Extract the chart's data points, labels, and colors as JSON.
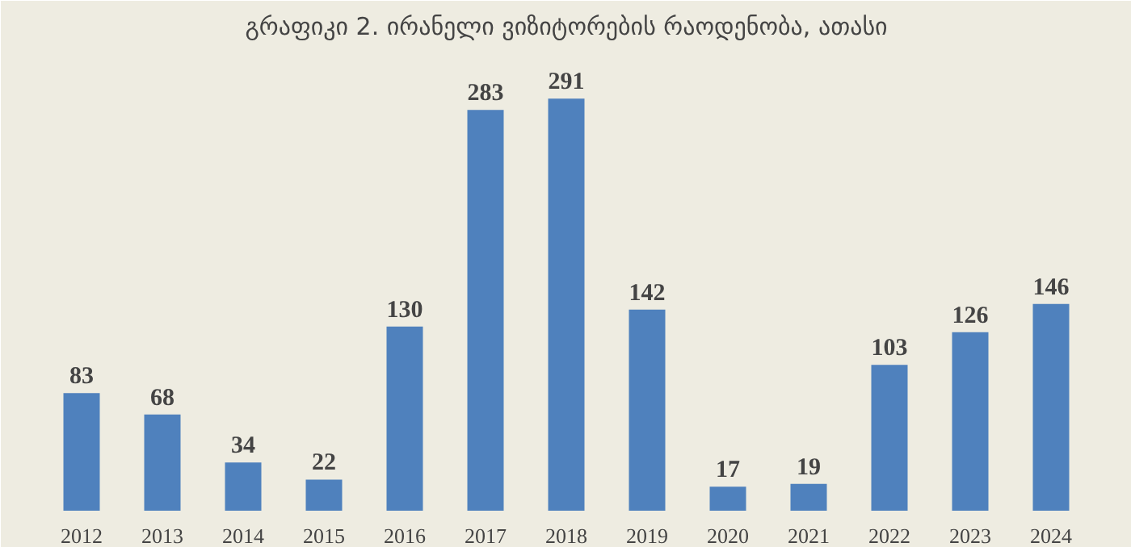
{
  "chart_data": {
    "type": "bar",
    "title": "გრაფიკი 2. ირანელი ვიზიტორების რაოდენობა, ათასი",
    "categories": [
      "2012",
      "2013",
      "2014",
      "2015",
      "2016",
      "2017",
      "2018",
      "2019",
      "2020",
      "2021",
      "2022",
      "2023",
      "2024"
    ],
    "values": [
      83,
      68,
      34,
      22,
      130,
      283,
      291,
      142,
      17,
      19,
      103,
      126,
      146
    ],
    "color": "#4f81bd",
    "data_labels": true,
    "grid": false
  }
}
